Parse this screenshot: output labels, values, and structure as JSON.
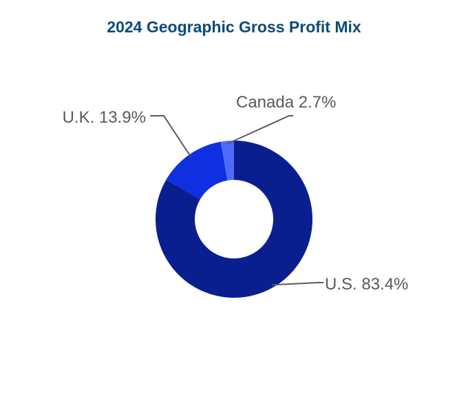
{
  "chart_data": {
    "type": "pie",
    "title": "2024 Geographic Gross Profit Mix",
    "categories": [
      "U.S.",
      "U.K.",
      "Canada"
    ],
    "values": [
      83.4,
      13.9,
      2.7
    ],
    "labels": [
      "U.S. 83.4%",
      "U.K. 13.9%",
      "Canada 2.7%"
    ],
    "colors": [
      "#0a1f8f",
      "#0f2fe0",
      "#4d6bfa"
    ],
    "legend": "none",
    "donut": true
  }
}
